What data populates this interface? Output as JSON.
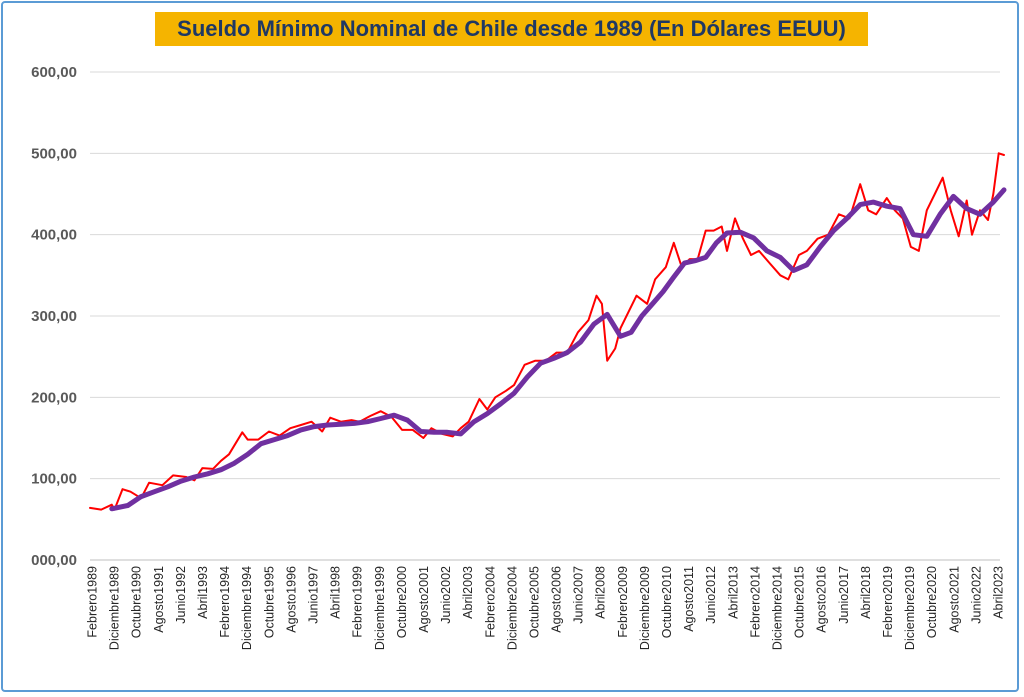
{
  "chart_data": {
    "type": "line",
    "title": "Sueldo Mínimo Nominal de Chile desde 1989 (En Dólares EEUU)",
    "xlabel": "",
    "ylabel": "",
    "ylim": [
      0,
      600
    ],
    "grid": true,
    "y_tick_labels": [
      "000,00",
      "100,00",
      "200,00",
      "300,00",
      "400,00",
      "500,00",
      "600,00"
    ],
    "x_tick_labels": [
      "Febrero1989",
      "Diciembre1989",
      "Octubre1990",
      "Agosto1991",
      "Junio1992",
      "Abril1993",
      "Febrero1994",
      "Diciembre1994",
      "Octubre1995",
      "Agosto1996",
      "Junio1997",
      "Abril1998",
      "Febrero1999",
      "Diciembre1999",
      "Octubre2000",
      "Agosto2001",
      "Junio2002",
      "Abril2003",
      "Febrero2004",
      "Diciembre2004",
      "Octubre2005",
      "Agosto2006",
      "Junio2007",
      "Abril2008",
      "Febrero2009",
      "Diciembre2009",
      "Octubre2010",
      "Agosto2011",
      "Junio2012",
      "Abril2013",
      "Febrero2014",
      "Diciembre2014",
      "Octubre2015",
      "Agosto2016",
      "Junio2017",
      "Abril2018",
      "Febrero2019",
      "Diciembre2019",
      "Octubre2020",
      "Agosto2021",
      "Junio2022",
      "Abril2023"
    ],
    "series": [
      {
        "color": "#ff0000",
        "x": [
          1989.08,
          1989.5,
          1989.9,
          1990.0,
          1990.3,
          1990.6,
          1991.0,
          1991.3,
          1991.8,
          1992.2,
          1992.7,
          1993.0,
          1993.3,
          1993.7,
          1994.0,
          1994.3,
          1994.8,
          1995.0,
          1995.4,
          1995.8,
          1996.2,
          1996.6,
          1997.0,
          1997.4,
          1997.8,
          1998.1,
          1998.5,
          1998.9,
          1999.2,
          1999.6,
          2000.0,
          2000.4,
          2000.8,
          2001.2,
          2001.6,
          2001.9,
          2002.3,
          2002.7,
          2003.0,
          2003.3,
          2003.7,
          2004.0,
          2004.3,
          2004.7,
          2005.0,
          2005.4,
          2005.8,
          2006.2,
          2006.6,
          2007.0,
          2007.4,
          2007.8,
          2008.1,
          2008.3,
          2008.5,
          2008.8,
          2009.0,
          2009.3,
          2009.6,
          2010.0,
          2010.3,
          2010.7,
          2011.0,
          2011.3,
          2011.6,
          2011.9,
          2012.2,
          2012.5,
          2012.8,
          2013.0,
          2013.3,
          2013.6,
          2013.9,
          2014.2,
          2014.6,
          2015.0,
          2015.3,
          2015.7,
          2016.0,
          2016.4,
          2016.8,
          2017.2,
          2017.6,
          2018.0,
          2018.3,
          2018.6,
          2019.0,
          2019.3,
          2019.6,
          2019.9,
          2020.2,
          2020.5,
          2020.8,
          2021.1,
          2021.4,
          2021.7,
          2022.0,
          2022.2,
          2022.5,
          2022.8,
          2023.0,
          2023.2,
          2023.4
        ],
        "y": [
          64,
          62,
          68,
          62,
          87,
          84,
          76,
          95,
          92,
          104,
          102,
          98,
          113,
          112,
          122,
          130,
          157,
          148,
          148,
          158,
          153,
          162,
          166,
          170,
          158,
          175,
          170,
          172,
          170,
          177,
          183,
          176,
          160,
          160,
          150,
          162,
          155,
          152,
          162,
          170,
          198,
          185,
          200,
          208,
          215,
          240,
          245,
          245,
          255,
          255,
          280,
          295,
          325,
          315,
          245,
          260,
          285,
          305,
          325,
          315,
          345,
          360,
          390,
          360,
          370,
          370,
          405,
          405,
          410,
          380,
          420,
          395,
          375,
          380,
          365,
          350,
          345,
          375,
          380,
          395,
          400,
          425,
          420,
          462,
          430,
          425,
          445,
          430,
          420,
          385,
          380,
          430,
          450,
          470,
          430,
          398,
          442,
          400,
          430,
          418,
          450,
          500,
          498
        ]
      },
      {
        "color": "#7030a0",
        "x": [
          1989.9,
          1990.5,
          1991.0,
          1991.5,
          1992.0,
          1992.5,
          1993.0,
          1993.5,
          1994.0,
          1994.5,
          1995.0,
          1995.5,
          1996.0,
          1996.5,
          1997.0,
          1997.5,
          1998.0,
          1998.5,
          1999.0,
          1999.5,
          2000.0,
          2000.5,
          2001.0,
          2001.5,
          2002.0,
          2002.5,
          2003.0,
          2003.5,
          2004.0,
          2004.5,
          2005.0,
          2005.5,
          2006.0,
          2006.5,
          2007.0,
          2007.5,
          2008.0,
          2008.5,
          2009.0,
          2009.4,
          2009.8,
          2010.2,
          2010.6,
          2011.0,
          2011.4,
          2011.8,
          2012.2,
          2012.6,
          2013.0,
          2013.5,
          2014.0,
          2014.5,
          2015.0,
          2015.5,
          2016.0,
          2016.5,
          2017.0,
          2017.5,
          2018.0,
          2018.5,
          2019.0,
          2019.5,
          2020.0,
          2020.5,
          2021.0,
          2021.5,
          2022.0,
          2022.5,
          2023.0,
          2023.4
        ],
        "y": [
          63,
          67,
          78,
          84,
          90,
          97,
          102,
          106,
          111,
          119,
          130,
          143,
          148,
          153,
          160,
          164,
          166,
          167,
          168,
          170,
          174,
          178,
          172,
          158,
          157,
          157,
          155,
          170,
          180,
          192,
          205,
          225,
          242,
          248,
          255,
          268,
          290,
          302,
          275,
          280,
          300,
          315,
          330,
          348,
          365,
          368,
          372,
          390,
          402,
          403,
          396,
          380,
          372,
          356,
          363,
          385,
          405,
          420,
          437,
          440,
          435,
          432,
          400,
          398,
          425,
          447,
          432,
          425,
          440,
          455
        ]
      }
    ]
  }
}
